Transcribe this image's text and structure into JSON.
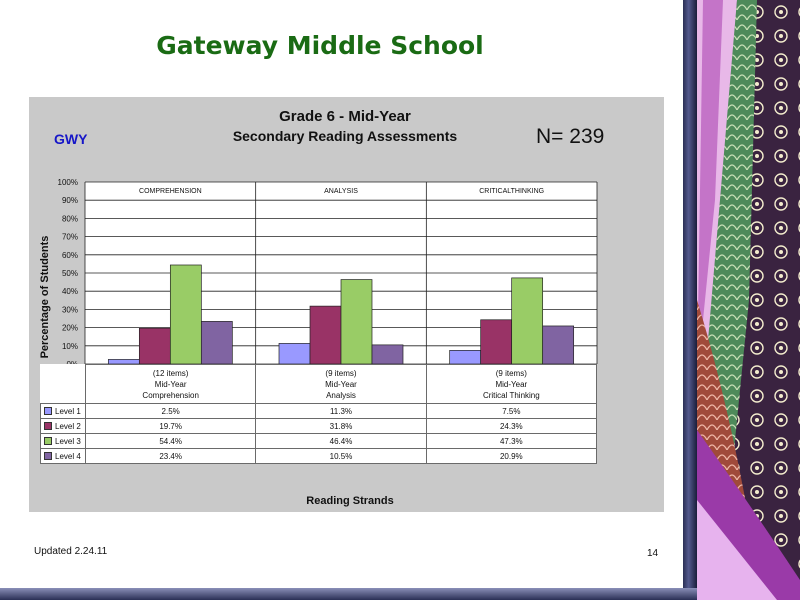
{
  "slide": {
    "title": "Gateway Middle School",
    "school_code": "GWY",
    "n_label": "N=  239",
    "updated": "Updated  2.24.11",
    "page_number": "14"
  },
  "colors": {
    "title": "#1a6b14",
    "school_code": "#1616c8",
    "level_1": "#9999ff",
    "level_2": "#993366",
    "level_3": "#99cc66",
    "level_4": "#8064a2"
  },
  "chart_data": {
    "type": "bar",
    "title": "Grade 6 - Mid-Year",
    "subtitle": "Secondary Reading Assessments",
    "xlabel": "Reading Strands",
    "ylabel": "Percentage of Students",
    "ylim": [
      0,
      100
    ],
    "y_ticks": [
      "0%",
      "10%",
      "20%",
      "30%",
      "40%",
      "50%",
      "60%",
      "70%",
      "80%",
      "90%",
      "100%"
    ],
    "panel_labels": [
      "COMPREHENSION",
      "ANALYSIS",
      "CRITICALTHINKING"
    ],
    "categories": [
      {
        "items": "(12 items)",
        "period": "Mid-Year",
        "strand": "Comprehension"
      },
      {
        "items": "(9 items)",
        "period": "Mid-Year",
        "strand": "Analysis"
      },
      {
        "items": "(9 items)",
        "period": "Mid-Year",
        "strand": "Critical Thinking"
      }
    ],
    "series": [
      {
        "name": "Level 1",
        "values": [
          2.5,
          11.3,
          7.5
        ],
        "labels": [
          "2.5%",
          "11.3%",
          "7.5%"
        ]
      },
      {
        "name": "Level 2",
        "values": [
          19.7,
          31.8,
          24.3
        ],
        "labels": [
          "19.7%",
          "31.8%",
          "24.3%"
        ]
      },
      {
        "name": "Level 3",
        "values": [
          54.4,
          46.4,
          47.3
        ],
        "labels": [
          "54.4%",
          "46.4%",
          "47.3%"
        ]
      },
      {
        "name": "Level 4",
        "values": [
          23.4,
          10.5,
          20.9
        ],
        "labels": [
          "23.4%",
          "10.5%",
          "20.9%"
        ]
      }
    ],
    "grid": true,
    "legend": "table-left"
  }
}
